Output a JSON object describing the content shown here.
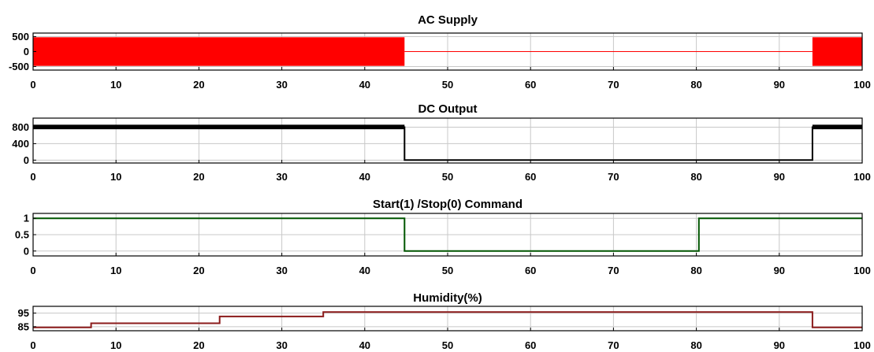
{
  "chart_data": [
    {
      "type": "line",
      "title": "AC Supply",
      "xlim": [
        0,
        100
      ],
      "ylim": [
        -620,
        620
      ],
      "xticks": [
        0,
        10,
        20,
        30,
        40,
        50,
        60,
        70,
        80,
        90,
        100
      ],
      "yticks": [
        500,
        0,
        -500
      ],
      "ytick_labels": [
        "500",
        "0",
        "-500"
      ],
      "grid": true,
      "series": [
        {
          "color": "#ff0000",
          "style": "oscillating-band",
          "segments": [
            {
              "x": [
                0,
                44.8
              ],
              "amplitude": 480
            },
            {
              "x": [
                44.8,
                94
              ],
              "amplitude": 0
            },
            {
              "x": [
                94,
                100
              ],
              "amplitude": 480
            }
          ]
        }
      ]
    },
    {
      "type": "line",
      "title": "DC Output",
      "xlim": [
        0,
        100
      ],
      "ylim": [
        -70,
        1020
      ],
      "xticks": [
        0,
        10,
        20,
        30,
        40,
        50,
        60,
        70,
        80,
        90,
        100
      ],
      "yticks": [
        800,
        400,
        0
      ],
      "ytick_labels": [
        "800",
        "400",
        "0"
      ],
      "grid": true,
      "series": [
        {
          "color": "#000000",
          "points": [
            [
              0,
              800
            ],
            [
              44.8,
              800
            ],
            [
              44.8,
              0
            ],
            [
              94,
              0
            ],
            [
              94,
              800
            ],
            [
              100,
              800
            ]
          ],
          "band": [
            {
              "x": [
                0,
                44.8
              ],
              "y": [
                750,
                860
              ]
            },
            {
              "x": [
                94,
                100
              ],
              "y": [
                750,
                860
              ]
            }
          ]
        }
      ]
    },
    {
      "type": "line",
      "title": "Start(1) /Stop(0) Command",
      "xlim": [
        0,
        100
      ],
      "ylim": [
        -0.15,
        1.15
      ],
      "xticks": [
        0,
        10,
        20,
        30,
        40,
        50,
        60,
        70,
        80,
        90,
        100
      ],
      "yticks": [
        1,
        0.5,
        0
      ],
      "ytick_labels": [
        "1",
        "0.5",
        "0"
      ],
      "grid": true,
      "series": [
        {
          "color": "#005500",
          "points": [
            [
              0,
              1
            ],
            [
              44.8,
              1
            ],
            [
              44.8,
              0
            ],
            [
              80.3,
              0
            ],
            [
              80.3,
              1
            ],
            [
              100,
              1
            ]
          ]
        }
      ]
    },
    {
      "type": "line",
      "title": "Humidity(%)",
      "xlim": [
        0,
        100
      ],
      "ylim": [
        82,
        100
      ],
      "xticks": [
        0,
        10,
        20,
        30,
        40,
        50,
        60,
        70,
        80,
        90,
        100
      ],
      "yticks": [
        95,
        85
      ],
      "ytick_labels": [
        "95",
        "85"
      ],
      "grid": true,
      "series": [
        {
          "color": "#8b1a1a",
          "points": [
            [
              0,
              84.5
            ],
            [
              7,
              84.5
            ],
            [
              7,
              87.5
            ],
            [
              22.5,
              87.5
            ],
            [
              22.5,
              92.5
            ],
            [
              35,
              92.5
            ],
            [
              35,
              95.8
            ],
            [
              94,
              95.8
            ],
            [
              94,
              84.5
            ],
            [
              100,
              84.5
            ]
          ]
        }
      ]
    }
  ]
}
